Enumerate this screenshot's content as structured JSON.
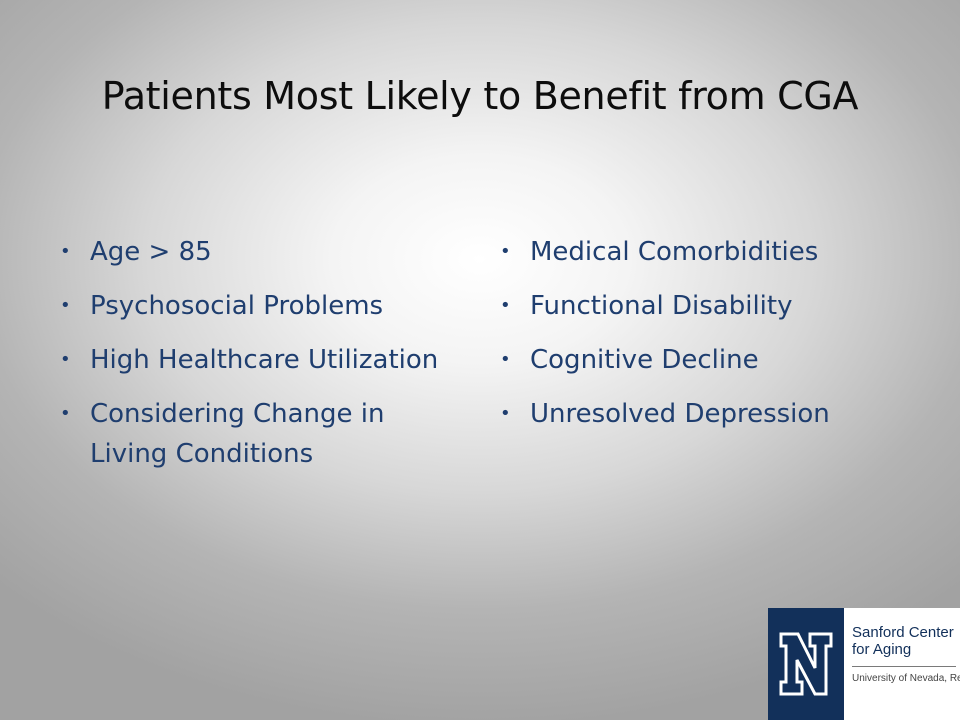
{
  "title": "Patients Most Likely to Benefit from CGA",
  "left_bullets": [
    "Age > 85",
    "Psychosocial Problems",
    "High Healthcare Utilization",
    "Considering Change in Living Conditions"
  ],
  "right_bullets": [
    "Medical Comorbidities",
    "Functional Disability",
    "Cognitive Decline",
    "Unresolved Depression"
  ],
  "bullet_glyph": "•",
  "logo": {
    "name_line1": "Sanford Center",
    "name_line2": "for Aging",
    "subtitle": "University of Nevada, Reno"
  },
  "colors": {
    "title": "#0d0d0d",
    "bullet_text": "#1f3e6f",
    "logo_navy": "#12305a"
  }
}
